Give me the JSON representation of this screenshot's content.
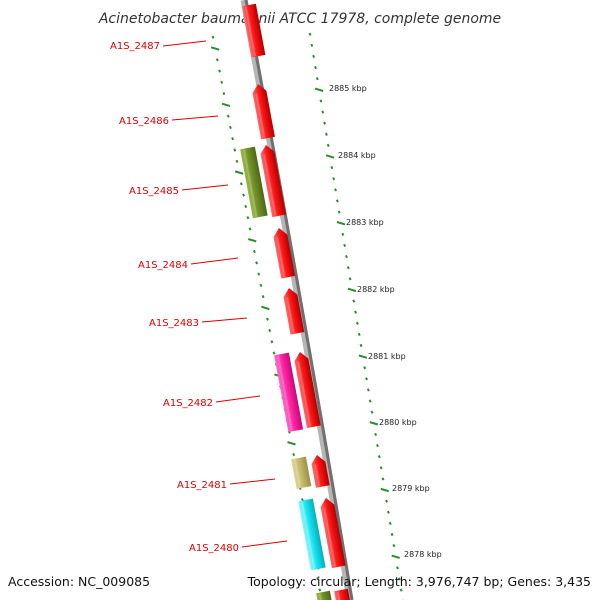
{
  "title": "Acinetobacter baumannii ATCC 17978, complete genome",
  "footer": {
    "accession": "Accession: NC_009085",
    "summary": "Topology: circular; Length: 3,976,747 bp; Genes: 3,435"
  },
  "colors": {
    "backbone": "#8a8a8a",
    "tick": "#2e8b2e",
    "gene_label": "#dd0000",
    "cds_forward": "#ff1a1a",
    "olive": "#7a9a2a",
    "magenta": "#ff2aa8",
    "khaki": "#c8bd72",
    "cyan": "#12e6f0"
  },
  "gene_labels": [
    {
      "text": "A1S_2487"
    },
    {
      "text": "A1S_2486"
    },
    {
      "text": "A1S_2485"
    },
    {
      "text": "A1S_2484"
    },
    {
      "text": "A1S_2483"
    },
    {
      "text": "A1S_2482"
    },
    {
      "text": "A1S_2481"
    },
    {
      "text": "A1S_2480"
    }
  ],
  "kbp_ticks": [
    {
      "text": "2885 kbp"
    },
    {
      "text": "2884 kbp"
    },
    {
      "text": "2883 kbp"
    },
    {
      "text": "2882 kbp"
    },
    {
      "text": "2881 kbp"
    },
    {
      "text": "2880 kbp"
    },
    {
      "text": "2879 kbp"
    },
    {
      "text": "2878 kbp"
    }
  ]
}
